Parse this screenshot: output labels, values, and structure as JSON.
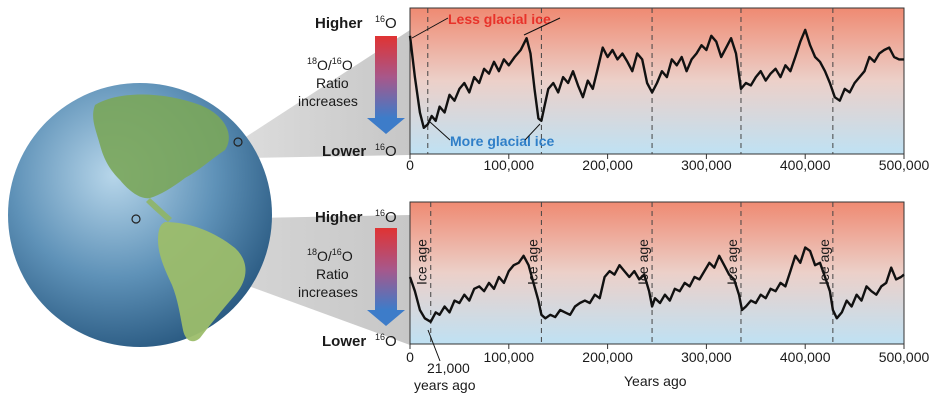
{
  "labels": {
    "higher": "Higher",
    "lower": "Lower",
    "o16": "O",
    "o16_sup": "16",
    "ratio_o18": "O/",
    "ratio_o18_sup": "18",
    "ratio_o16": "O",
    "ratio_o16_sup": "16",
    "ratio_line2": "Ratio",
    "ratio_line3": "increases",
    "less_glacial": "Less glacial ice",
    "more_glacial": "More glacial ice",
    "ice_age": "Ice age",
    "years_ago_21000_line1": "21,000",
    "years_ago_21000_line2": "years ago",
    "x_axis_title": "Years ago"
  },
  "colors": {
    "top_band": "#ef8a72",
    "bottom_band": "#bfe1f3",
    "arrow_top": "#e03333",
    "arrow_bottom": "#3d7cc9",
    "less_glacial_text": "#e8322a",
    "more_glacial_text": "#2f7fc8",
    "trace": "#111111"
  },
  "chart_data": [
    {
      "type": "line",
      "panel": "top",
      "x_range": [
        0,
        500000
      ],
      "x_ticks": [
        "0",
        "100,000",
        "200,000",
        "300,000",
        "400,000",
        "500,000"
      ],
      "x_tick_values": [
        0,
        100000,
        200000,
        300000,
        400000,
        500000
      ],
      "ice_age_lines": [
        18000,
        133000,
        245000,
        335000,
        428000
      ],
      "series": [
        {
          "x": [
            0,
            5000,
            10000,
            14000,
            18000,
            22000,
            26000,
            30000,
            35000,
            40000,
            45000,
            50000,
            55000,
            60000,
            65000,
            70000,
            75000,
            80000,
            85000,
            90000,
            95000,
            100000,
            106000,
            112000,
            118000,
            122000,
            126000,
            130000,
            133000,
            136000,
            140000,
            145000,
            150000,
            155000,
            160000,
            165000,
            170000,
            175000,
            180000,
            185000,
            190000,
            195000,
            200000,
            205000,
            210000,
            215000,
            220000,
            225000,
            230000,
            235000,
            240000,
            245000,
            250000,
            255000,
            260000,
            265000,
            270000,
            275000,
            280000,
            285000,
            290000,
            295000,
            300000,
            305000,
            310000,
            315000,
            320000,
            325000,
            330000,
            335000,
            340000,
            345000,
            350000,
            355000,
            360000,
            365000,
            370000,
            375000,
            380000,
            385000,
            390000,
            395000,
            400000,
            405000,
            410000,
            415000,
            420000,
            425000,
            430000,
            435000,
            440000,
            445000,
            450000,
            455000,
            460000,
            465000,
            470000,
            475000,
            480000,
            485000,
            490000,
            495000,
            500000
          ],
          "y": [
            0.9,
            0.55,
            0.25,
            0.12,
            0.15,
            0.22,
            0.18,
            0.3,
            0.25,
            0.4,
            0.35,
            0.45,
            0.5,
            0.42,
            0.55,
            0.5,
            0.62,
            0.58,
            0.68,
            0.6,
            0.7,
            0.65,
            0.72,
            0.78,
            0.88,
            0.75,
            0.45,
            0.2,
            0.18,
            0.3,
            0.45,
            0.5,
            0.42,
            0.55,
            0.5,
            0.6,
            0.48,
            0.38,
            0.52,
            0.45,
            0.62,
            0.8,
            0.72,
            0.78,
            0.7,
            0.75,
            0.68,
            0.6,
            0.75,
            0.7,
            0.5,
            0.42,
            0.5,
            0.6,
            0.55,
            0.7,
            0.65,
            0.72,
            0.6,
            0.7,
            0.75,
            0.82,
            0.78,
            0.9,
            0.85,
            0.72,
            0.8,
            0.88,
            0.75,
            0.45,
            0.5,
            0.48,
            0.55,
            0.6,
            0.52,
            0.58,
            0.62,
            0.55,
            0.65,
            0.6,
            0.72,
            0.85,
            0.95,
            0.82,
            0.72,
            0.68,
            0.6,
            0.5,
            0.38,
            0.35,
            0.45,
            0.42,
            0.5,
            0.55,
            0.6,
            0.72,
            0.68,
            0.75,
            0.78,
            0.8,
            0.72,
            0.7,
            0.7
          ]
        }
      ]
    },
    {
      "type": "line",
      "panel": "bottom",
      "x_range": [
        0,
        500000
      ],
      "x_ticks": [
        "0",
        "100,000",
        "200,000",
        "300,000",
        "400,000",
        "500,000"
      ],
      "x_tick_values": [
        0,
        100000,
        200000,
        300000,
        400000,
        500000
      ],
      "xlabel": "Years ago",
      "ice_age_lines": [
        21000,
        133000,
        245000,
        335000,
        428000
      ],
      "series": [
        {
          "x": [
            0,
            5000,
            10000,
            15000,
            21000,
            26000,
            30000,
            35000,
            40000,
            45000,
            50000,
            55000,
            60000,
            65000,
            70000,
            75000,
            80000,
            85000,
            90000,
            95000,
            100000,
            105000,
            110000,
            115000,
            120000,
            125000,
            130000,
            133000,
            137000,
            142000,
            147000,
            152000,
            157000,
            162000,
            167000,
            172000,
            177000,
            182000,
            187000,
            192000,
            197000,
            202000,
            207000,
            212000,
            217000,
            222000,
            227000,
            232000,
            237000,
            242000,
            245000,
            248000,
            253000,
            258000,
            263000,
            268000,
            273000,
            278000,
            283000,
            288000,
            293000,
            298000,
            303000,
            308000,
            313000,
            318000,
            323000,
            328000,
            333000,
            336000,
            340000,
            345000,
            350000,
            355000,
            360000,
            365000,
            370000,
            375000,
            380000,
            385000,
            390000,
            395000,
            400000,
            405000,
            410000,
            415000,
            420000,
            425000,
            428000,
            432000,
            437000,
            442000,
            447000,
            452000,
            457000,
            462000,
            467000,
            472000,
            477000,
            482000,
            487000,
            492000,
            497000,
            500000
          ],
          "y": [
            0.5,
            0.38,
            0.22,
            0.15,
            0.12,
            0.2,
            0.18,
            0.25,
            0.2,
            0.3,
            0.28,
            0.35,
            0.3,
            0.4,
            0.42,
            0.38,
            0.45,
            0.4,
            0.5,
            0.45,
            0.55,
            0.6,
            0.62,
            0.68,
            0.6,
            0.45,
            0.3,
            0.18,
            0.15,
            0.18,
            0.16,
            0.22,
            0.2,
            0.18,
            0.25,
            0.28,
            0.3,
            0.28,
            0.35,
            0.32,
            0.5,
            0.55,
            0.52,
            0.6,
            0.55,
            0.5,
            0.55,
            0.48,
            0.52,
            0.38,
            0.25,
            0.32,
            0.28,
            0.35,
            0.3,
            0.4,
            0.38,
            0.45,
            0.42,
            0.5,
            0.48,
            0.55,
            0.62,
            0.58,
            0.68,
            0.6,
            0.52,
            0.48,
            0.35,
            0.22,
            0.25,
            0.3,
            0.28,
            0.35,
            0.32,
            0.4,
            0.38,
            0.45,
            0.42,
            0.55,
            0.68,
            0.62,
            0.75,
            0.72,
            0.6,
            0.62,
            0.5,
            0.38,
            0.22,
            0.15,
            0.2,
            0.3,
            0.25,
            0.35,
            0.3,
            0.42,
            0.38,
            0.35,
            0.42,
            0.45,
            0.58,
            0.48,
            0.5,
            0.52
          ]
        }
      ]
    }
  ]
}
